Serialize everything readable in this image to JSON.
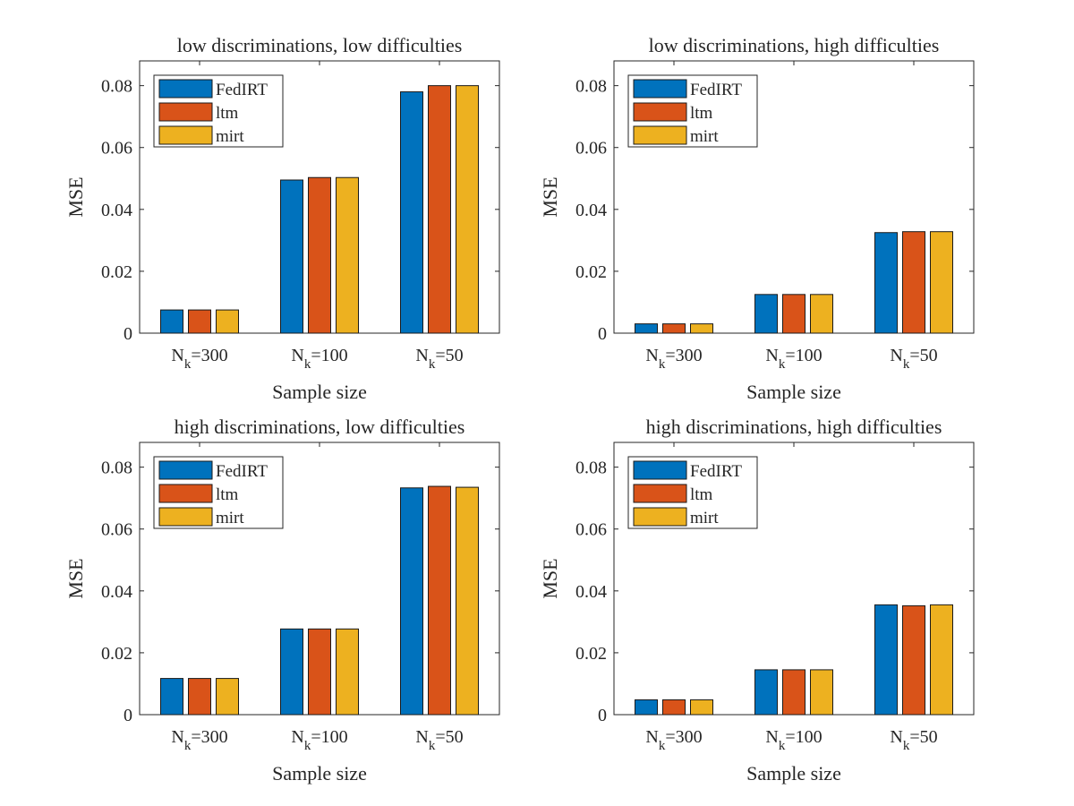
{
  "figure": {
    "background": "#ffffff"
  },
  "series_colors": [
    "#0072BD",
    "#D95319",
    "#EDB120"
  ],
  "chart_data": [
    {
      "type": "bar",
      "title": "low discriminations, low difficulties",
      "xlabel": "Sample size",
      "ylabel": "MSE",
      "ylim": [
        0,
        0.088
      ],
      "yticks": [
        "0",
        "0.02",
        "0.04",
        "0.06",
        "0.08"
      ],
      "categories": [
        {
          "base": "N",
          "sub": "k",
          "rest": "=300"
        },
        {
          "base": "N",
          "sub": "k",
          "rest": "=100"
        },
        {
          "base": "N",
          "sub": "k",
          "rest": "=50"
        }
      ],
      "legend": "top-left",
      "series": [
        {
          "name": "FedIRT",
          "values": [
            0.0075,
            0.0495,
            0.078
          ]
        },
        {
          "name": "ltm",
          "values": [
            0.0075,
            0.0503,
            0.08
          ]
        },
        {
          "name": "mirt",
          "values": [
            0.0075,
            0.0503,
            0.08
          ]
        }
      ]
    },
    {
      "type": "bar",
      "title": "low discriminations, high difficulties",
      "xlabel": "Sample size",
      "ylabel": "MSE",
      "ylim": [
        0,
        0.088
      ],
      "yticks": [
        "0",
        "0.02",
        "0.04",
        "0.06",
        "0.08"
      ],
      "categories": [
        {
          "base": "N",
          "sub": "k",
          "rest": "=300"
        },
        {
          "base": "N",
          "sub": "k",
          "rest": "=100"
        },
        {
          "base": "N",
          "sub": "k",
          "rest": "=50"
        }
      ],
      "legend": "top-left",
      "series": [
        {
          "name": "FedIRT",
          "values": [
            0.003,
            0.0125,
            0.0325
          ]
        },
        {
          "name": "ltm",
          "values": [
            0.003,
            0.0125,
            0.0328
          ]
        },
        {
          "name": "mirt",
          "values": [
            0.003,
            0.0125,
            0.0328
          ]
        }
      ]
    },
    {
      "type": "bar",
      "title": "high discriminations, low difficulties",
      "xlabel": "Sample size",
      "ylabel": "MSE",
      "ylim": [
        0,
        0.088
      ],
      "yticks": [
        "0",
        "0.02",
        "0.04",
        "0.06",
        "0.08"
      ],
      "categories": [
        {
          "base": "N",
          "sub": "k",
          "rest": "=300"
        },
        {
          "base": "N",
          "sub": "k",
          "rest": "=100"
        },
        {
          "base": "N",
          "sub": "k",
          "rest": "=50"
        }
      ],
      "legend": "top-left",
      "series": [
        {
          "name": "FedIRT",
          "values": [
            0.0117,
            0.0277,
            0.0733
          ]
        },
        {
          "name": "ltm",
          "values": [
            0.0117,
            0.0277,
            0.0738
          ]
        },
        {
          "name": "mirt",
          "values": [
            0.0117,
            0.0277,
            0.0735
          ]
        }
      ]
    },
    {
      "type": "bar",
      "title": "high discriminations, high difficulties",
      "xlabel": "Sample size",
      "ylabel": "MSE",
      "ylim": [
        0,
        0.088
      ],
      "yticks": [
        "0",
        "0.02",
        "0.04",
        "0.06",
        "0.08"
      ],
      "categories": [
        {
          "base": "N",
          "sub": "k",
          "rest": "=300"
        },
        {
          "base": "N",
          "sub": "k",
          "rest": "=100"
        },
        {
          "base": "N",
          "sub": "k",
          "rest": "=50"
        }
      ],
      "legend": "top-left",
      "series": [
        {
          "name": "FedIRT",
          "values": [
            0.0048,
            0.0145,
            0.0355
          ]
        },
        {
          "name": "ltm",
          "values": [
            0.0048,
            0.0145,
            0.0352
          ]
        },
        {
          "name": "mirt",
          "values": [
            0.0048,
            0.0145,
            0.0355
          ]
        }
      ]
    }
  ]
}
